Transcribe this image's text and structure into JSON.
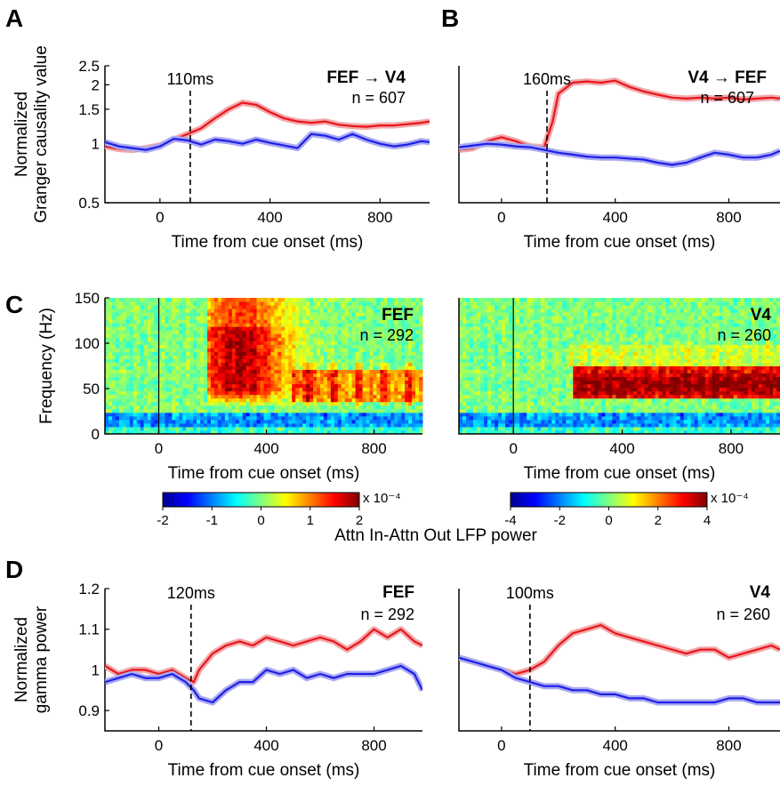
{
  "panel_letters": [
    "A",
    "B",
    "C",
    "D"
  ],
  "colors": {
    "attn_in": "#e8161c",
    "attn_out": "#1f1fe6",
    "shade_in": "#f2a9ab",
    "shade_out": "#a9a9f2"
  },
  "colorbar_label": "Attn In-Attn Out LFP power",
  "chart_data": [
    {
      "id": "A",
      "type": "line",
      "title": "FEF → V4",
      "n_label": "n = 607",
      "xlabel": "Time from cue onset (ms)",
      "ylabel": "Normalized Granger causality value",
      "xlim": [
        -200,
        980
      ],
      "ylim": [
        0.5,
        2.5
      ],
      "yscale": "log",
      "xticks": [
        0,
        400,
        800
      ],
      "yticks": [
        0.5,
        1,
        1.5,
        2,
        2.5
      ],
      "ytick_labels": [
        "0.5",
        "1",
        "1.5",
        "2",
        "2.5"
      ],
      "latency": 110,
      "latency_label": "110ms",
      "series": [
        {
          "color": "#e8161c",
          "x": [
            -200,
            -150,
            -100,
            -50,
            0,
            50,
            100,
            150,
            200,
            250,
            300,
            350,
            400,
            450,
            500,
            550,
            600,
            650,
            700,
            750,
            800,
            850,
            900,
            950,
            980
          ],
          "y": [
            0.97,
            0.94,
            0.93,
            0.95,
            0.98,
            1.05,
            1.12,
            1.2,
            1.35,
            1.5,
            1.62,
            1.58,
            1.45,
            1.35,
            1.3,
            1.28,
            1.3,
            1.25,
            1.23,
            1.22,
            1.24,
            1.24,
            1.26,
            1.28,
            1.3
          ]
        },
        {
          "color": "#1f1fe6",
          "x": [
            -200,
            -150,
            -100,
            -50,
            0,
            50,
            100,
            150,
            200,
            250,
            300,
            350,
            400,
            450,
            500,
            550,
            600,
            650,
            700,
            750,
            800,
            850,
            900,
            950,
            980
          ],
          "y": [
            1.02,
            0.97,
            0.95,
            0.93,
            0.97,
            1.06,
            1.04,
            0.99,
            1.05,
            1.03,
            1.0,
            1.05,
            1.01,
            0.98,
            0.95,
            1.12,
            1.1,
            1.05,
            1.12,
            1.05,
            1.0,
            0.97,
            0.99,
            1.03,
            1.02
          ]
        }
      ]
    },
    {
      "id": "B",
      "type": "line",
      "title": "V4 → FEF",
      "n_label": "n = 607",
      "xlabel": "Time from cue onset (ms)",
      "ylabel": "",
      "xlim": [
        -150,
        980
      ],
      "ylim": [
        0.5,
        2.5
      ],
      "yscale": "log",
      "xticks": [
        0,
        400,
        800
      ],
      "yticks": [],
      "latency": 160,
      "latency_label": "160ms",
      "series": [
        {
          "color": "#e8161c",
          "x": [
            -150,
            -100,
            -50,
            0,
            50,
            100,
            150,
            180,
            200,
            250,
            300,
            350,
            400,
            450,
            500,
            550,
            600,
            650,
            700,
            750,
            800,
            850,
            900,
            950,
            980
          ],
          "y": [
            0.93,
            0.95,
            1.03,
            1.08,
            1.03,
            0.97,
            0.96,
            1.3,
            1.8,
            2.05,
            2.08,
            2.05,
            2.1,
            1.95,
            1.85,
            1.78,
            1.72,
            1.7,
            1.72,
            1.7,
            1.72,
            1.68,
            1.7,
            1.72,
            1.7
          ]
        },
        {
          "color": "#1f1fe6",
          "x": [
            -150,
            -100,
            -50,
            0,
            50,
            100,
            150,
            200,
            250,
            300,
            350,
            400,
            450,
            500,
            550,
            600,
            650,
            700,
            750,
            800,
            850,
            900,
            950,
            980
          ],
          "y": [
            0.96,
            0.98,
            1.0,
            0.99,
            0.97,
            0.96,
            0.93,
            0.9,
            0.88,
            0.86,
            0.85,
            0.85,
            0.84,
            0.83,
            0.8,
            0.78,
            0.8,
            0.85,
            0.9,
            0.88,
            0.85,
            0.85,
            0.88,
            0.92
          ]
        }
      ]
    },
    {
      "id": "C1",
      "type": "heatmap",
      "title": "FEF",
      "n_label": "n = 292",
      "xlabel": "Time from cue onset (ms)",
      "ylabel": "Frequency (Hz)",
      "xlim": [
        -200,
        980
      ],
      "ylim": [
        0,
        150
      ],
      "xticks": [
        0,
        400,
        800
      ],
      "yticks": [
        0,
        50,
        100,
        150
      ],
      "colorbar": {
        "ticks": [
          -2,
          -1,
          0,
          1,
          2
        ],
        "scale_label": "x 10⁻⁴",
        "range": [
          -2,
          2
        ]
      }
    },
    {
      "id": "C2",
      "type": "heatmap",
      "title": "V4",
      "n_label": "n = 260",
      "xlabel": "Time from cue onset (ms)",
      "ylabel": "",
      "xlim": [
        -200,
        980
      ],
      "ylim": [
        0,
        150
      ],
      "xticks": [
        0,
        400,
        800
      ],
      "yticks": [],
      "colorbar": {
        "ticks": [
          -4,
          -2,
          0,
          2,
          4
        ],
        "scale_label": "x 10⁻⁴",
        "range": [
          -4,
          4
        ]
      }
    },
    {
      "id": "D1",
      "type": "line",
      "title": "FEF",
      "n_label": "n = 292",
      "xlabel": "Time from cue onset (ms)",
      "ylabel": "Normalized gamma power",
      "xlim": [
        -200,
        980
      ],
      "ylim": [
        0.85,
        1.2
      ],
      "xticks": [
        0,
        400,
        800
      ],
      "yticks": [
        0.9,
        1,
        1.1,
        1.2
      ],
      "ytick_labels": [
        "0.9",
        "1",
        "1.1",
        "1.2"
      ],
      "latency": 120,
      "latency_label": "120ms",
      "series": [
        {
          "color": "#e8161c",
          "x": [
            -200,
            -150,
            -100,
            -50,
            0,
            50,
            100,
            130,
            150,
            200,
            250,
            300,
            350,
            400,
            450,
            500,
            550,
            600,
            650,
            700,
            750,
            800,
            850,
            900,
            950,
            980
          ],
          "y": [
            1.01,
            0.99,
            1.0,
            1.0,
            0.99,
            1.0,
            0.98,
            0.97,
            1.0,
            1.04,
            1.06,
            1.07,
            1.06,
            1.08,
            1.07,
            1.06,
            1.07,
            1.08,
            1.07,
            1.05,
            1.07,
            1.1,
            1.08,
            1.1,
            1.07,
            1.06
          ]
        },
        {
          "color": "#1f1fe6",
          "x": [
            -200,
            -150,
            -100,
            -50,
            0,
            50,
            100,
            130,
            150,
            200,
            250,
            300,
            350,
            400,
            450,
            500,
            550,
            600,
            650,
            700,
            750,
            800,
            850,
            900,
            950,
            980
          ],
          "y": [
            0.97,
            0.98,
            0.99,
            0.98,
            0.98,
            0.99,
            0.97,
            0.95,
            0.93,
            0.92,
            0.95,
            0.97,
            0.97,
            1.0,
            0.99,
            1.0,
            0.98,
            0.99,
            0.98,
            0.99,
            0.99,
            0.99,
            1.0,
            1.01,
            0.99,
            0.95
          ]
        }
      ]
    },
    {
      "id": "D2",
      "type": "line",
      "title": "V4",
      "n_label": "n = 260",
      "xlabel": "Time from cue onset (ms)",
      "ylabel": "",
      "xlim": [
        -150,
        980
      ],
      "ylim": [
        0.85,
        1.2
      ],
      "xticks": [
        0,
        400,
        800
      ],
      "yticks": [],
      "latency": 100,
      "latency_label": "100ms",
      "series": [
        {
          "color": "#e8161c",
          "x": [
            -150,
            -100,
            -50,
            0,
            50,
            100,
            150,
            200,
            250,
            300,
            350,
            400,
            450,
            500,
            550,
            600,
            650,
            700,
            750,
            800,
            850,
            900,
            950,
            980
          ],
          "y": [
            1.03,
            1.02,
            1.01,
            1.0,
            0.99,
            1.0,
            1.02,
            1.06,
            1.09,
            1.1,
            1.11,
            1.09,
            1.08,
            1.07,
            1.06,
            1.05,
            1.04,
            1.05,
            1.05,
            1.03,
            1.04,
            1.05,
            1.06,
            1.05
          ]
        },
        {
          "color": "#1f1fe6",
          "x": [
            -150,
            -100,
            -50,
            0,
            50,
            100,
            150,
            200,
            250,
            300,
            350,
            400,
            450,
            500,
            550,
            600,
            650,
            700,
            750,
            800,
            850,
            900,
            950,
            980
          ],
          "y": [
            1.03,
            1.02,
            1.01,
            1.0,
            0.98,
            0.97,
            0.96,
            0.96,
            0.95,
            0.95,
            0.94,
            0.94,
            0.93,
            0.93,
            0.92,
            0.92,
            0.92,
            0.92,
            0.92,
            0.93,
            0.93,
            0.92,
            0.92,
            0.92
          ]
        }
      ]
    }
  ]
}
